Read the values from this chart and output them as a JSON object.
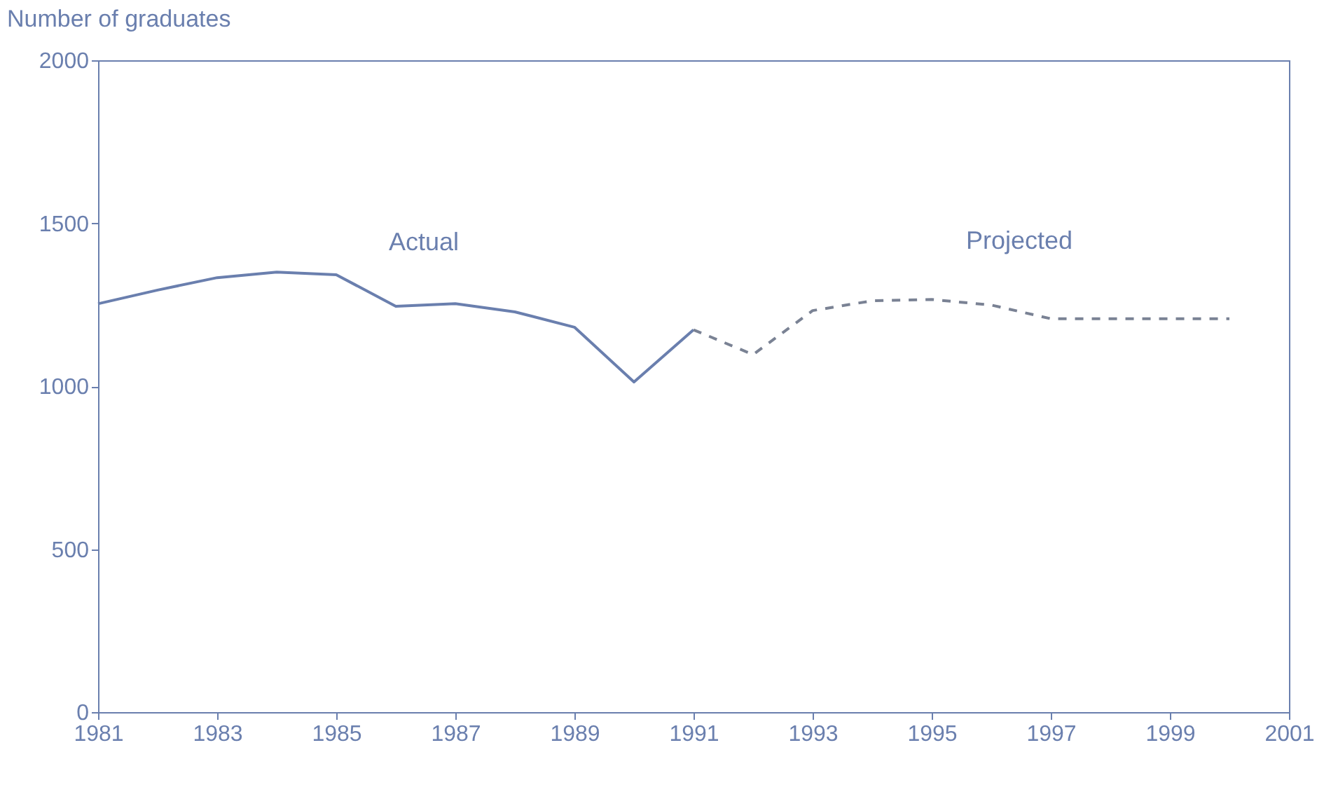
{
  "chart_data": {
    "type": "line",
    "ylabel": "Number of graduates",
    "x": [
      1981,
      1982,
      1983,
      1984,
      1985,
      1986,
      1987,
      1988,
      1989,
      1990,
      1991
    ],
    "series": [
      {
        "name": "Actual",
        "color": "#6a7fae",
        "line_style": "solid",
        "values": [
          1253,
          1295,
          1333,
          1350,
          1342,
          1245,
          1253,
          1228,
          1181,
          1013,
          1173
        ]
      },
      {
        "name": "Projected",
        "color": "#7a8294",
        "line_style": "dashed",
        "x": [
          1991,
          1992,
          1993,
          1994,
          1995,
          1996,
          1997,
          1998,
          1999,
          2000
        ],
        "values": [
          1173,
          1097,
          1232,
          1262,
          1266,
          1249,
          1207,
          1207,
          1207,
          1207
        ]
      }
    ],
    "xlim": [
      1981,
      2001
    ],
    "xticks": [
      1981,
      1983,
      1985,
      1987,
      1989,
      1991,
      1993,
      1995,
      1997,
      1999,
      2001
    ],
    "ylim": [
      0,
      2000
    ],
    "yticks": [
      0,
      500,
      1000,
      1500,
      2000
    ],
    "grid": false,
    "marker": "none"
  }
}
